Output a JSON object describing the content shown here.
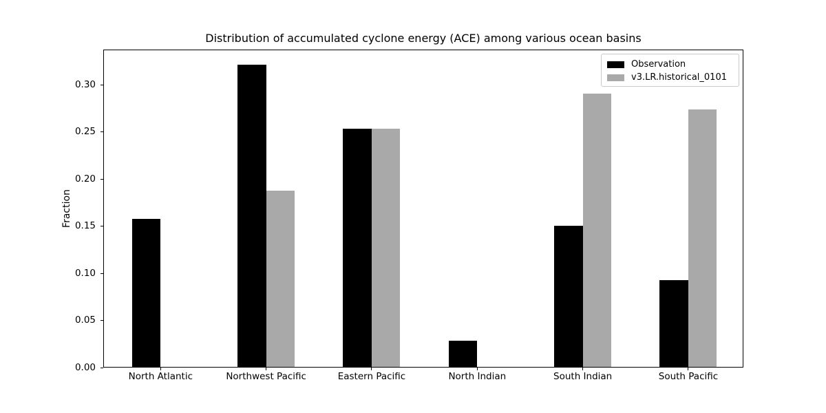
{
  "chart_data": {
    "type": "bar",
    "title": "Distribution of accumulated cyclone energy (ACE) among various ocean basins",
    "xlabel": "",
    "ylabel": "Fraction",
    "categories": [
      "North Atlantic",
      "Northwest Pacific",
      "Eastern Pacific",
      "North Indian",
      "South Indian",
      "South Pacific"
    ],
    "series": [
      {
        "name": "Observation",
        "color": "#000000",
        "values": [
          0.157,
          0.321,
          0.253,
          0.028,
          0.15,
          0.092
        ]
      },
      {
        "name": "v3.LR.historical_0101",
        "color": "#a9a9a9",
        "values": [
          0,
          0.187,
          0.253,
          0,
          0.29,
          0.273
        ]
      }
    ],
    "ylim": [
      0,
      0.3375
    ],
    "yticks": [
      0,
      0.05,
      0.1,
      0.15,
      0.2,
      0.25,
      0.3
    ],
    "ytick_labels": [
      "0.00",
      "0.05",
      "0.10",
      "0.15",
      "0.20",
      "0.25",
      "0.30"
    ],
    "grid": false,
    "legend_position": "upper right",
    "bar_group_layout": "grouped-pairs"
  }
}
